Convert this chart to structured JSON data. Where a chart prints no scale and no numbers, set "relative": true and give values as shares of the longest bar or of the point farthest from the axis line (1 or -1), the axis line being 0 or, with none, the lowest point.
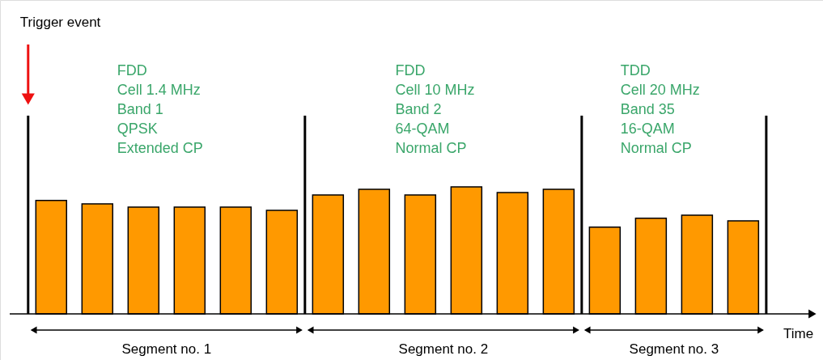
{
  "chart_data": {
    "type": "bar",
    "relative": true,
    "categories": [
      null,
      null,
      null,
      null,
      null,
      null,
      null,
      null,
      null,
      null,
      null,
      null,
      null,
      null,
      null,
      null
    ],
    "xlabel": "Time",
    "series": [
      {
        "color": "#ff9900",
        "values": [
          0.892,
          0.866,
          0.841,
          0.841,
          0.841,
          0.815,
          0.936,
          0.981,
          0.936,
          1,
          0.955,
          0.981,
          0.682,
          0.752,
          0.777,
          0.732
        ]
      }
    ],
    "annotations": [
      "Trigger event",
      "FDD\nCell 1.4 MHz\nBand 1\nQPSK\nExtended CP",
      "FDD\nCell 10 MHz\nBand 2\n64-QAM\nNormal CP",
      "TDD\nCell 20 MHz\nBand 35\n16-QAM\nNormal CP",
      "Segment no. 1",
      "Segment no. 2",
      "Segment no. 3"
    ]
  }
}
